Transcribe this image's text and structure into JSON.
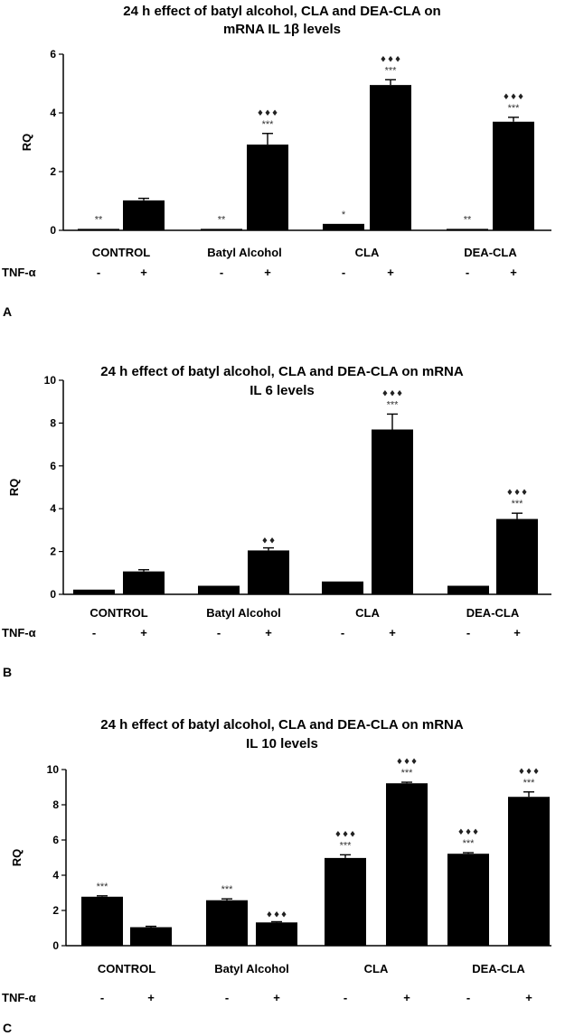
{
  "chart_data": [
    {
      "type": "bar",
      "panel_label": "A",
      "title": "24 h effect of batyl alcohol, CLA and DEA-CLA on",
      "title_line2": "mRNA IL 1β levels",
      "ylabel": "RQ",
      "xlabel": "",
      "ylim": [
        0,
        6
      ],
      "yticks": [
        "0",
        "2",
        "4",
        "6"
      ],
      "groups": [
        "CONTROL",
        "Batyl Alcohol",
        "CLA",
        "DEA-CLA"
      ],
      "tnf_label": "TNF-α",
      "tnf_signs": [
        "-",
        "+",
        "-",
        "+",
        "-",
        "+",
        "-",
        "+"
      ],
      "values": [
        0.05,
        1.02,
        0.05,
        2.92,
        0.22,
        4.95,
        0.05,
        3.7
      ],
      "errors": [
        0,
        0.07,
        0,
        0.38,
        0,
        0.18,
        0,
        0.15
      ],
      "stars": [
        "**",
        "",
        "**",
        "***",
        "*",
        "***",
        "**",
        "***"
      ],
      "dots": [
        "",
        "",
        "",
        "♦♦♦",
        "",
        "♦♦♦",
        "",
        "♦♦♦"
      ]
    },
    {
      "type": "bar",
      "panel_label": "B",
      "title": "24 h effect of batyl alcohol, CLA and DEA-CLA on mRNA",
      "title_line2": "IL 6 levels",
      "ylabel": "RQ",
      "xlabel": "",
      "ylim": [
        0,
        10
      ],
      "yticks": [
        "0",
        "2",
        "4",
        "6",
        "8",
        "10"
      ],
      "groups": [
        "CONTROL",
        "Batyl Alcohol",
        "CLA",
        "DEA-CLA"
      ],
      "tnf_label": "TNF-α",
      "tnf_signs": [
        "-",
        "+",
        "-",
        "+",
        "-",
        "+",
        "-",
        "+"
      ],
      "values": [
        0.22,
        1.07,
        0.4,
        2.05,
        0.6,
        7.7,
        0.4,
        3.52
      ],
      "errors": [
        0,
        0.08,
        0,
        0.12,
        0,
        0.72,
        0,
        0.27
      ],
      "stars": [
        "",
        "",
        "",
        "",
        "",
        "***",
        "",
        "***"
      ],
      "dots": [
        "",
        "",
        "",
        "♦♦",
        "",
        "♦♦♦",
        "",
        "♦♦♦"
      ]
    },
    {
      "type": "bar",
      "panel_label": "C",
      "title": "24 h effect of batyl alcohol, CLA and DEA-CLA on mRNA",
      "title_line2": "IL 10 levels",
      "ylabel": "RQ",
      "xlabel": "",
      "ylim": [
        0,
        10
      ],
      "yticks": [
        "0",
        "2",
        "4",
        "6",
        "8",
        "10"
      ],
      "groups": [
        "CONTROL",
        "Batyl Alcohol",
        "CLA",
        "DEA-CLA"
      ],
      "tnf_label": "TNF-α",
      "tnf_signs": [
        "-",
        "+",
        "-",
        "+",
        "-",
        "+",
        "-",
        "+"
      ],
      "values": [
        2.78,
        1.05,
        2.58,
        1.32,
        4.98,
        9.22,
        5.22,
        8.45
      ],
      "errors": [
        0.05,
        0.05,
        0.08,
        0.04,
        0.18,
        0.06,
        0.06,
        0.28
      ],
      "stars": [
        "***",
        "",
        "***",
        "",
        "***",
        "***",
        "***",
        "***"
      ],
      "dots": [
        "",
        "",
        "",
        "♦♦♦",
        "♦♦♦",
        "♦♦♦",
        "♦♦♦",
        "♦♦♦"
      ]
    }
  ]
}
